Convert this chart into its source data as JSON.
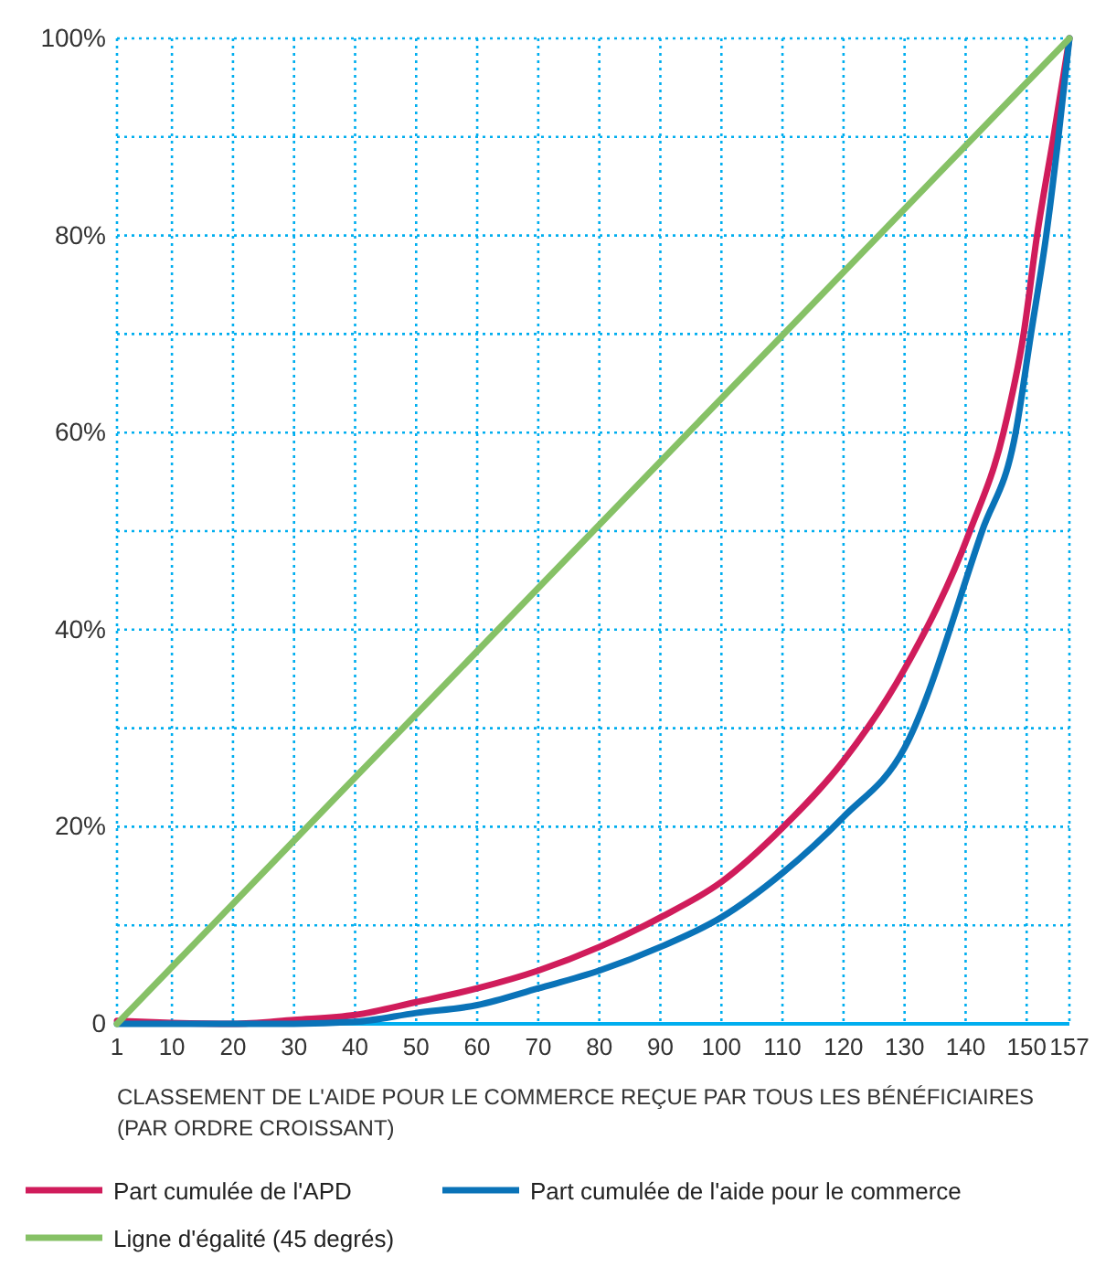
{
  "chart_data": {
    "type": "line",
    "xlabel": "CLASSEMENT DE L'AIDE POUR LE COMMERCE REÇUE PAR TOUS LES BÉNÉFICIAIRES (PAR ORDRE CROISSANT)",
    "xlim": [
      1,
      157
    ],
    "xticks": [
      1,
      10,
      20,
      30,
      40,
      50,
      60,
      70,
      80,
      90,
      100,
      110,
      120,
      130,
      140,
      150,
      157
    ],
    "ylim": [
      0,
      100
    ],
    "yticks": [
      {
        "value": 0,
        "label": "0"
      },
      {
        "value": 10,
        "label": null
      },
      {
        "value": 20,
        "label": "20%"
      },
      {
        "value": 30,
        "label": null
      },
      {
        "value": 40,
        "label": "40%"
      },
      {
        "value": 50,
        "label": null
      },
      {
        "value": 60,
        "label": "60%"
      },
      {
        "value": 70,
        "label": null
      },
      {
        "value": 80,
        "label": "80%"
      },
      {
        "value": 90,
        "label": null
      },
      {
        "value": 100,
        "label": "100%"
      }
    ],
    "grid": true,
    "legend": "bottom",
    "marker": "none",
    "line_style": "solid",
    "series": [
      {
        "name": "Part cumulée de l'APD",
        "color": "#d01c5b",
        "x": [
          1,
          10,
          20,
          30,
          40,
          50,
          60,
          70,
          80,
          90,
          100,
          110,
          120,
          130,
          140.7,
          146.2,
          149.5,
          151.7,
          154.4,
          157
        ],
        "values": [
          0.3,
          0.1,
          0,
          0.4,
          0.9,
          2.2,
          3.6,
          5.4,
          7.8,
          10.8,
          14.4,
          19.9,
          26.7,
          36,
          50,
          60,
          70,
          80,
          90,
          100
        ]
      },
      {
        "name": "Part cumulée de l'aide pour le commerce",
        "color": "#0a73b8",
        "x": [
          1,
          20,
          30,
          40,
          50,
          60,
          70,
          80,
          90,
          100,
          110,
          120,
          130,
          142.7,
          148.2,
          150.7,
          153.2,
          155.2,
          157
        ],
        "values": [
          0,
          0,
          0,
          0.2,
          1.1,
          1.9,
          3.6,
          5.4,
          7.8,
          10.8,
          15.3,
          21,
          28,
          50,
          60,
          70,
          80,
          90,
          100
        ]
      },
      {
        "name": "Ligne d'égalité (45 degrés)",
        "color": "#86c166",
        "x": [
          1,
          157
        ],
        "values": [
          0,
          100
        ]
      }
    ]
  }
}
